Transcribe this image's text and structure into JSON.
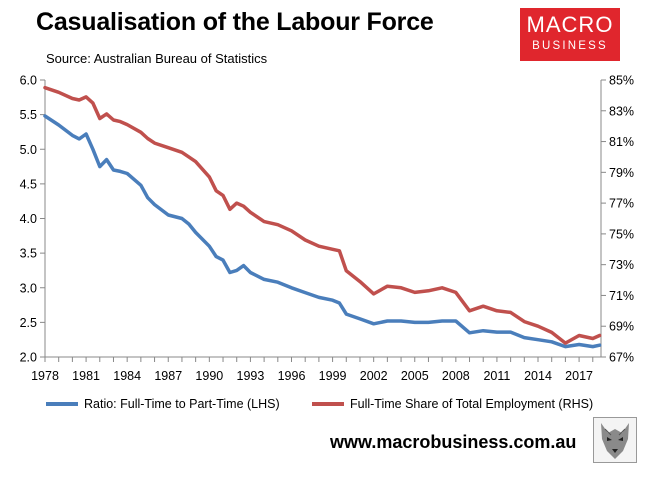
{
  "header": {
    "title": "Casualisation of the Labour Force",
    "source": "Source: Australian Bureau of Statistics"
  },
  "logo": {
    "line1": "MACRO",
    "line2": "BUSINESS",
    "background": "#e0262d"
  },
  "footer": {
    "url": "www.macrobusiness.com.au",
    "emblem_icon": "wolf-emblem-icon"
  },
  "chart_data": {
    "type": "line",
    "title": "Casualisation of the Labour Force",
    "subtitle": "Source: Australian Bureau of Statistics",
    "x_ticks": [
      "1978",
      "1981",
      "1984",
      "1987",
      "1990",
      "1993",
      "1996",
      "1999",
      "2002",
      "2005",
      "2008",
      "2011",
      "2014",
      "2017"
    ],
    "xlim": [
      1978,
      2018.6
    ],
    "y_left": {
      "ylim": [
        2.0,
        6.0
      ],
      "ticks": [
        "2.0",
        "2.5",
        "3.0",
        "3.5",
        "4.0",
        "4.5",
        "5.0",
        "5.5",
        "6.0"
      ]
    },
    "y_right": {
      "ylim": [
        67,
        85
      ],
      "ticks": [
        "67%",
        "69%",
        "71%",
        "73%",
        "75%",
        "77%",
        "79%",
        "81%",
        "83%",
        "85%"
      ]
    },
    "grid": false,
    "legend_position": "bottom",
    "series": [
      {
        "name": "Ratio: Full-Time to Part-Time (LHS)",
        "axis": "left",
        "color": "#4a7ebb",
        "x": [
          1978,
          1979,
          1980,
          1980.5,
          1981,
          1981.5,
          1982,
          1982.5,
          1983,
          1983.5,
          1984,
          1985,
          1985.5,
          1986,
          1987,
          1988,
          1988.5,
          1989,
          1990,
          1990.5,
          1991,
          1991.5,
          1992,
          1992.5,
          1993,
          1994,
          1995,
          1996,
          1997,
          1998,
          1999,
          1999.5,
          2000,
          2001,
          2002,
          2003,
          2004,
          2005,
          2006,
          2007,
          2008,
          2009,
          2010,
          2011,
          2012,
          2013,
          2014,
          2015,
          2016,
          2017,
          2018,
          2018.5
        ],
        "values": [
          5.48,
          5.35,
          5.2,
          5.15,
          5.22,
          5.0,
          4.75,
          4.85,
          4.7,
          4.68,
          4.65,
          4.48,
          4.3,
          4.2,
          4.05,
          4.0,
          3.92,
          3.8,
          3.6,
          3.45,
          3.4,
          3.22,
          3.25,
          3.32,
          3.22,
          3.12,
          3.08,
          3.0,
          2.93,
          2.86,
          2.82,
          2.78,
          2.62,
          2.55,
          2.48,
          2.52,
          2.52,
          2.5,
          2.5,
          2.52,
          2.52,
          2.35,
          2.38,
          2.36,
          2.36,
          2.28,
          2.25,
          2.22,
          2.15,
          2.18,
          2.15,
          2.17
        ]
      },
      {
        "name": "Full-Time Share of Total Employment (RHS)",
        "axis": "right",
        "color": "#c0504d",
        "x": [
          1978,
          1979,
          1980,
          1980.5,
          1981,
          1981.5,
          1982,
          1982.5,
          1983,
          1983.5,
          1984,
          1985,
          1985.5,
          1986,
          1987,
          1988,
          1988.5,
          1989,
          1990,
          1990.5,
          1991,
          1991.5,
          1992,
          1992.5,
          1993,
          1994,
          1995,
          1996,
          1997,
          1998,
          1999,
          1999.5,
          2000,
          2001,
          2002,
          2003,
          2004,
          2005,
          2006,
          2007,
          2008,
          2009,
          2010,
          2011,
          2012,
          2013,
          2014,
          2015,
          2016,
          2017,
          2018,
          2018.5
        ],
        "values": [
          84.5,
          84.2,
          83.8,
          83.7,
          83.9,
          83.5,
          82.5,
          82.8,
          82.4,
          82.3,
          82.1,
          81.6,
          81.2,
          80.9,
          80.6,
          80.3,
          80.0,
          79.7,
          78.7,
          77.8,
          77.5,
          76.6,
          77.0,
          76.8,
          76.4,
          75.8,
          75.6,
          75.2,
          74.6,
          74.2,
          74.0,
          73.9,
          72.6,
          71.9,
          71.1,
          71.6,
          71.5,
          71.2,
          71.3,
          71.5,
          71.2,
          70.0,
          70.3,
          70.0,
          69.9,
          69.3,
          69.0,
          68.6,
          67.9,
          68.4,
          68.2,
          68.4
        ]
      }
    ]
  }
}
